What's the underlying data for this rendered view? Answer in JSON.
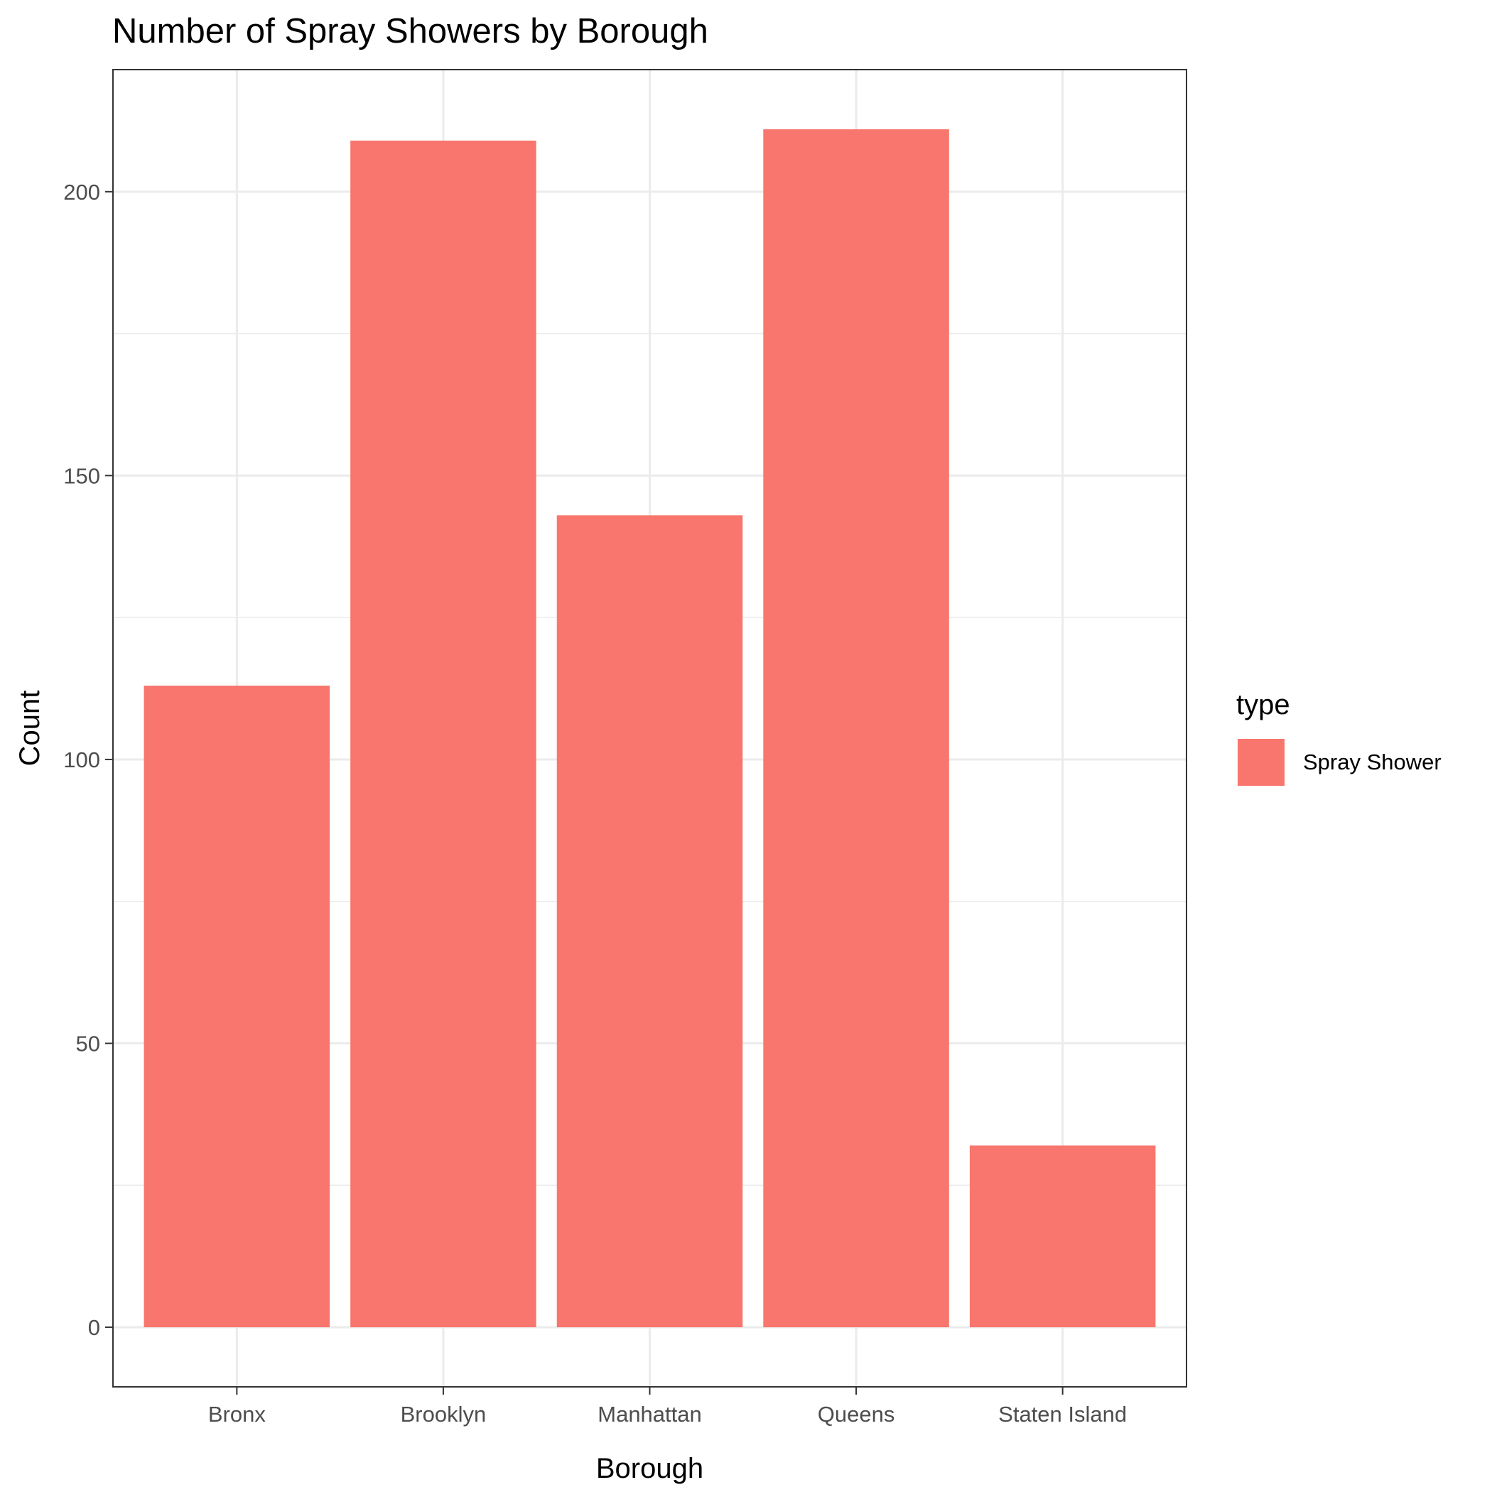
{
  "chart_data": {
    "type": "bar",
    "title": "Number of Spray Showers by Borough",
    "xlabel": "Borough",
    "ylabel": "Count",
    "categories": [
      "Bronx",
      "Brooklyn",
      "Manhattan",
      "Queens",
      "Staten Island"
    ],
    "series": [
      {
        "name": "Spray Shower",
        "values": [
          113,
          209,
          143,
          211,
          32
        ]
      }
    ],
    "ylim": [
      -10.5,
      221.5
    ],
    "yticks": [
      0,
      50,
      100,
      150,
      200
    ],
    "ytick_labels": [
      "0",
      "50",
      "100",
      "150",
      "200"
    ],
    "grid": true,
    "legend": {
      "title": "type",
      "placement": "right"
    },
    "colors": {
      "bar": "#F8766D",
      "grid": "#EBEBEB",
      "panel_border": "#333333",
      "background": "#FFFFFF"
    }
  }
}
